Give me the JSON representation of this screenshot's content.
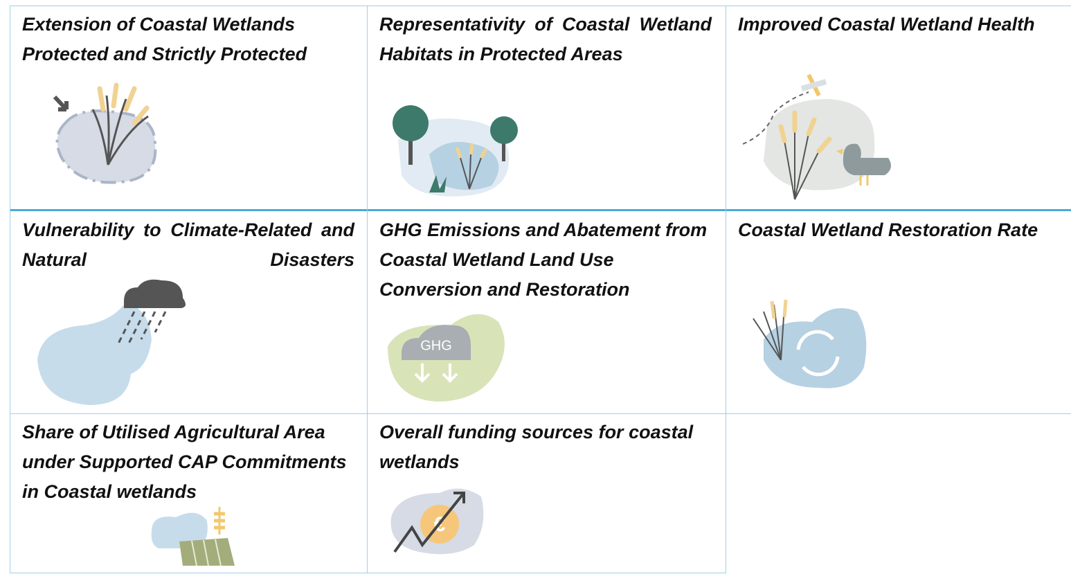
{
  "table": {
    "rows": [
      [
        {
          "title": "Extension of Coastal Wetlands Protected and Strictly Protected"
        },
        {
          "title": "Representativity of Coastal Wetland Habitats in Protected Areas"
        },
        {
          "title": "Improved Coastal Wetland Health"
        }
      ],
      [
        {
          "title": "Vulnerability to Climate-Related and Natural Disasters"
        },
        {
          "title": "GHG Emissions and Abatement from Coastal Wetland Land Use Conversion and Restoration",
          "icon_text": "GHG"
        },
        {
          "title": "Coastal Wetland Restoration Rate"
        }
      ],
      [
        {
          "title": "Share of Utilised Agricultural Area under Supported CAP Commitments in Coastal wetlands"
        },
        {
          "title": "Overall funding sources for coastal wetlands",
          "icon_text": "€"
        }
      ]
    ]
  }
}
